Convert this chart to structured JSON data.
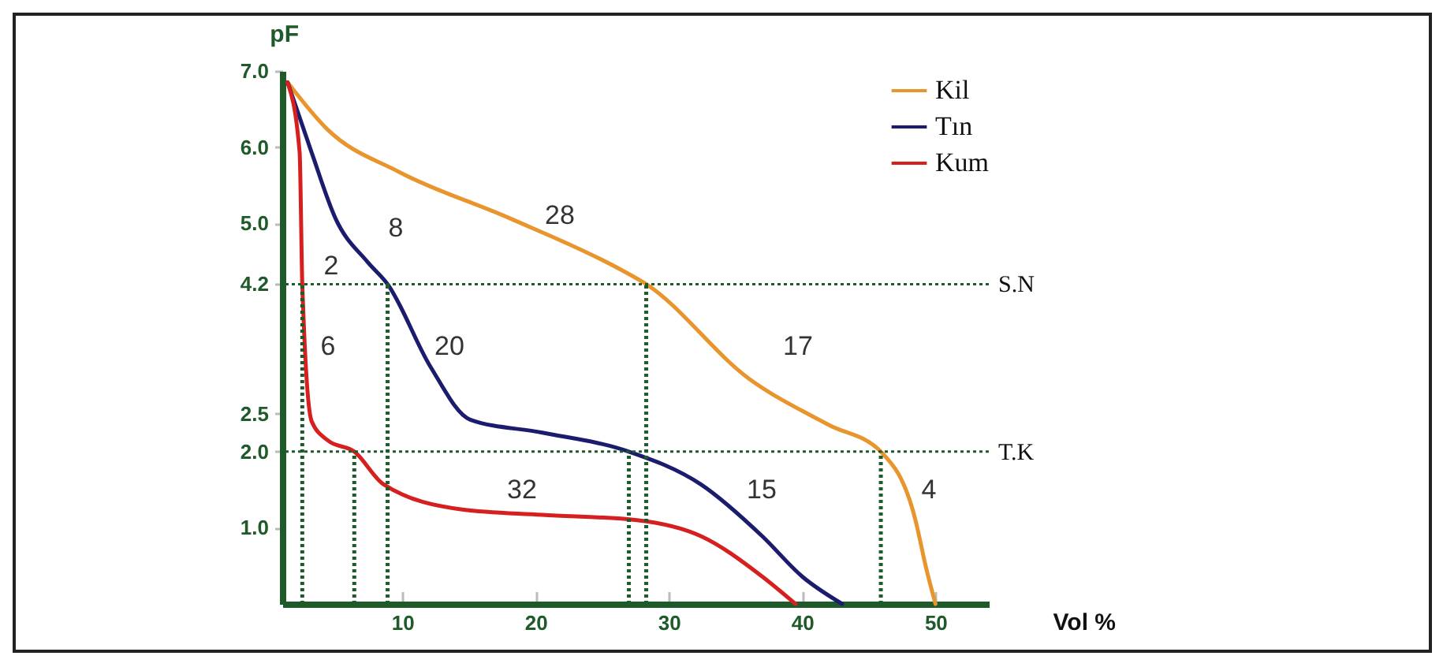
{
  "chart_data": {
    "type": "line",
    "xlabel": "Vol %",
    "ylabel": "pF",
    "xlim": [
      1,
      54
    ],
    "xticks": [
      10,
      20,
      30,
      40,
      50
    ],
    "ylim": [
      0,
      7
    ],
    "yticks": [
      {
        "value": 1,
        "label": "1.0"
      },
      {
        "value": 2,
        "label": "2.0"
      },
      {
        "value": 2.5,
        "label": "2.5"
      },
      {
        "value": 4.2,
        "label": "4.2"
      },
      {
        "value": 5,
        "label": "5.0"
      },
      {
        "value": 6,
        "label": "6.0"
      },
      {
        "value": 7,
        "label": "7.0"
      }
    ],
    "legend": "top right",
    "grid": false,
    "marker": "none",
    "line_style": "solid",
    "series": [
      {
        "name": "Kil",
        "color": "#e8952e",
        "x": [
          1.4,
          4.4,
          9.8,
          18,
          26.4,
          28.3,
          36,
          42,
          45.9,
          48.5,
          49.3,
          50
        ],
        "values": [
          6.85,
          6.23,
          5.67,
          5.07,
          4.39,
          4.2,
          2.96,
          2.35,
          2.0,
          1.1,
          0.47,
          0
        ]
      },
      {
        "name": "Tın",
        "color": "#1c1c6e",
        "x": [
          1.4,
          3.2,
          5,
          7.4,
          8.9,
          12.1,
          15.1,
          20.5,
          27,
          32.4,
          37,
          40,
          43
        ],
        "values": [
          6.85,
          5.93,
          5.06,
          4.49,
          4.2,
          3.12,
          2.42,
          2.25,
          2.0,
          1.57,
          0.89,
          0.36,
          0
        ]
      },
      {
        "name": "Kum",
        "color": "#d62020",
        "x": [
          1.4,
          2.3,
          2.5,
          3.2,
          4.4,
          6.4,
          8.6,
          14.5,
          20.5,
          27.6,
          32.4,
          37,
          39.5
        ],
        "values": [
          6.85,
          5.93,
          4.2,
          2.4,
          2.15,
          2.0,
          1.57,
          1.24,
          1.17,
          1.1,
          0.89,
          0.36,
          0
        ]
      }
    ],
    "ref_lines": [
      {
        "axis": "y",
        "value": 4.2,
        "label": "S.N",
        "line_style": "dotted"
      },
      {
        "axis": "y",
        "value": 2,
        "label": "T.K",
        "line_style": "dotted"
      },
      {
        "axis": "x",
        "value": 2.5,
        "line_style": "dotted"
      },
      {
        "axis": "x",
        "value": 6.4,
        "line_style": "dotted"
      },
      {
        "axis": "x",
        "value": 8.9,
        "line_style": "dotted"
      },
      {
        "axis": "x",
        "value": 27,
        "line_style": "dotted"
      },
      {
        "axis": "x",
        "value": 28.3,
        "line_style": "dotted"
      },
      {
        "axis": "x",
        "value": 45.9,
        "line_style": "dotted"
      }
    ],
    "annotations": [
      "28",
      "2",
      "8",
      "6",
      "20",
      "17",
      "32",
      "15",
      "4"
    ]
  }
}
